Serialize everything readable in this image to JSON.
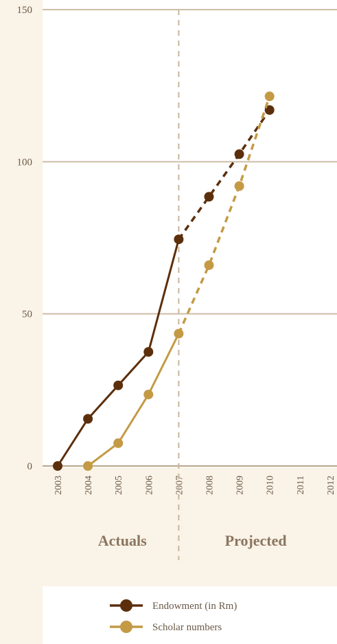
{
  "chart_data": {
    "type": "line",
    "x": [
      2003,
      2004,
      2005,
      2006,
      2007,
      2008,
      2009,
      2010,
      2011,
      2012
    ],
    "ylim": [
      0,
      150
    ],
    "yticks": [
      0,
      50,
      100,
      150
    ],
    "split_at": 2007,
    "sections": [
      "Actuals",
      "Projected"
    ],
    "series": [
      {
        "name": "Endowment (in Rm)",
        "color": "#5c2f0c",
        "actual": [
          [
            2003,
            0
          ],
          [
            2004,
            15.5
          ],
          [
            2005,
            26.5
          ],
          [
            2006,
            37.5
          ],
          [
            2007,
            74.5
          ]
        ],
        "projected": [
          [
            2007,
            74.5
          ],
          [
            2008,
            88.5
          ],
          [
            2009,
            102.5
          ],
          [
            2010,
            117
          ]
        ]
      },
      {
        "name": "Scholar numbers",
        "color": "#c49a45",
        "actual": [
          [
            2004,
            0
          ],
          [
            2005,
            7.5
          ],
          [
            2006,
            23.5
          ],
          [
            2007,
            43.5
          ]
        ],
        "projected": [
          [
            2007,
            43.5
          ],
          [
            2008,
            66
          ],
          [
            2009,
            92
          ],
          [
            2010,
            121.5
          ]
        ]
      }
    ],
    "grid": true,
    "legend_position": "bottom"
  }
}
